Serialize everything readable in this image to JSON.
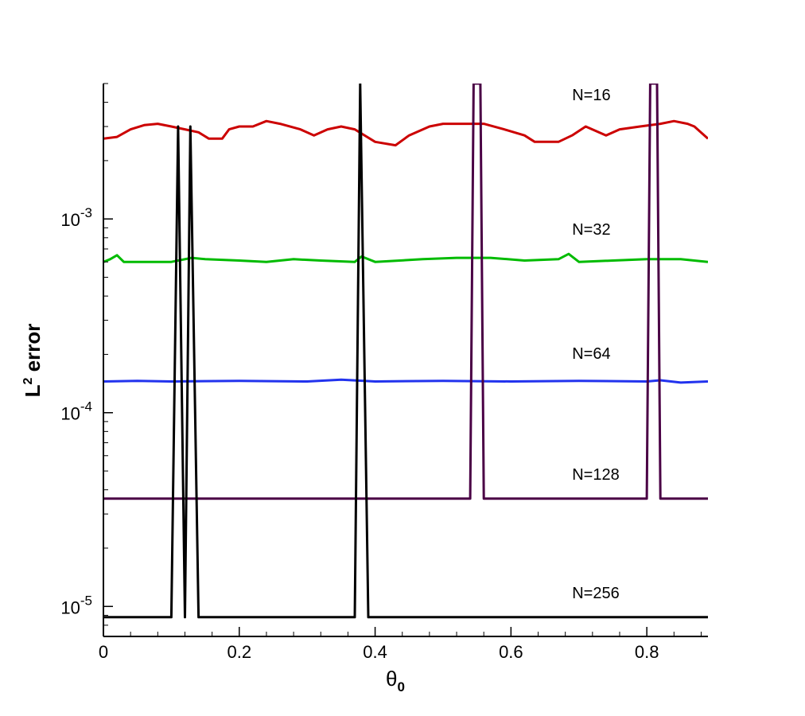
{
  "chart_data": {
    "type": "line",
    "xlabel": "θ",
    "xlabel_subscript": "0",
    "ylabel": "L",
    "ylabel_superscript": "2",
    "ylabel_suffix": " error",
    "xlim": [
      0,
      0.89
    ],
    "ylim": [
      7e-06,
      0.005
    ],
    "yscale": "log",
    "grid": false,
    "legend": "none",
    "x_ticks": [
      {
        "value": 0,
        "label": "0"
      },
      {
        "value": 0.2,
        "label": "0.2"
      },
      {
        "value": 0.4,
        "label": "0.4"
      },
      {
        "value": 0.6,
        "label": "0.6"
      },
      {
        "value": 0.8,
        "label": "0.8"
      }
    ],
    "y_ticks": [
      {
        "value": 1e-05,
        "base": "10",
        "exp": "-5"
      },
      {
        "value": 0.0001,
        "base": "10",
        "exp": "-4"
      },
      {
        "value": 0.001,
        "base": "10",
        "exp": "-3"
      }
    ],
    "series": [
      {
        "name": "N=16",
        "color": "#cc0000",
        "label_at": [
          0.69,
          0.0041
        ],
        "points": [
          [
            0,
            0.0026
          ],
          [
            0.02,
            0.00265
          ],
          [
            0.04,
            0.0029
          ],
          [
            0.06,
            0.00305
          ],
          [
            0.08,
            0.0031
          ],
          [
            0.1,
            0.003
          ],
          [
            0.12,
            0.0029
          ],
          [
            0.14,
            0.0028
          ],
          [
            0.155,
            0.0026
          ],
          [
            0.175,
            0.0026
          ],
          [
            0.185,
            0.0029
          ],
          [
            0.2,
            0.003
          ],
          [
            0.22,
            0.003
          ],
          [
            0.24,
            0.0032
          ],
          [
            0.26,
            0.0031
          ],
          [
            0.29,
            0.0029
          ],
          [
            0.31,
            0.0027
          ],
          [
            0.33,
            0.0029
          ],
          [
            0.35,
            0.003
          ],
          [
            0.37,
            0.0029
          ],
          [
            0.4,
            0.0025
          ],
          [
            0.43,
            0.0024
          ],
          [
            0.45,
            0.0027
          ],
          [
            0.48,
            0.003
          ],
          [
            0.5,
            0.0031
          ],
          [
            0.53,
            0.0031
          ],
          [
            0.56,
            0.0031
          ],
          [
            0.59,
            0.0029
          ],
          [
            0.62,
            0.0027
          ],
          [
            0.635,
            0.0025
          ],
          [
            0.67,
            0.0025
          ],
          [
            0.69,
            0.0027
          ],
          [
            0.71,
            0.003
          ],
          [
            0.74,
            0.0027
          ],
          [
            0.76,
            0.0029
          ],
          [
            0.79,
            0.003
          ],
          [
            0.82,
            0.0031
          ],
          [
            0.84,
            0.0032
          ],
          [
            0.86,
            0.0031
          ],
          [
            0.87,
            0.003
          ],
          [
            0.89,
            0.0026
          ]
        ]
      },
      {
        "name": "N=32",
        "color": "#00bb00",
        "label_at": [
          0.69,
          0.00083
        ],
        "points": [
          [
            0,
            0.0006
          ],
          [
            0.01,
            0.00062
          ],
          [
            0.02,
            0.00065
          ],
          [
            0.03,
            0.0006
          ],
          [
            0.1,
            0.0006
          ],
          [
            0.13,
            0.00063
          ],
          [
            0.15,
            0.00062
          ],
          [
            0.2,
            0.00061
          ],
          [
            0.24,
            0.0006
          ],
          [
            0.28,
            0.00062
          ],
          [
            0.32,
            0.00061
          ],
          [
            0.37,
            0.0006
          ],
          [
            0.38,
            0.00064
          ],
          [
            0.4,
            0.0006
          ],
          [
            0.47,
            0.00062
          ],
          [
            0.52,
            0.00063
          ],
          [
            0.57,
            0.00063
          ],
          [
            0.62,
            0.00061
          ],
          [
            0.67,
            0.00062
          ],
          [
            0.685,
            0.00066
          ],
          [
            0.7,
            0.0006
          ],
          [
            0.75,
            0.00061
          ],
          [
            0.8,
            0.00062
          ],
          [
            0.85,
            0.00062
          ],
          [
            0.89,
            0.0006
          ]
        ]
      },
      {
        "name": "N=64",
        "color": "#2233ee",
        "label_at": [
          0.69,
          0.00019
        ],
        "points": [
          [
            0,
            0.000145
          ],
          [
            0.05,
            0.000146
          ],
          [
            0.1,
            0.000145
          ],
          [
            0.2,
            0.000146
          ],
          [
            0.3,
            0.000145
          ],
          [
            0.35,
            0.000148
          ],
          [
            0.4,
            0.000145
          ],
          [
            0.5,
            0.000146
          ],
          [
            0.6,
            0.000145
          ],
          [
            0.7,
            0.000146
          ],
          [
            0.8,
            0.000145
          ],
          [
            0.82,
            0.000147
          ],
          [
            0.85,
            0.000143
          ],
          [
            0.89,
            0.000145
          ]
        ]
      },
      {
        "name": "N=128",
        "color": "#4a0045",
        "label_at": [
          0.69,
          4.5e-05
        ],
        "points": [
          [
            0,
            3.6e-05
          ],
          [
            0.54,
            3.6e-05
          ],
          [
            0.545,
            0.005
          ],
          [
            0.555,
            0.005
          ],
          [
            0.56,
            3.6e-05
          ],
          [
            0.8,
            3.6e-05
          ],
          [
            0.805,
            0.005
          ],
          [
            0.815,
            0.005
          ],
          [
            0.82,
            3.6e-05
          ],
          [
            0.89,
            3.6e-05
          ]
        ]
      },
      {
        "name": "N=256",
        "color": "#000000",
        "label_at": [
          0.69,
          1.1e-05
        ],
        "points": [
          [
            0,
            8.8e-06
          ],
          [
            0.1,
            8.8e-06
          ],
          [
            0.11,
            0.003
          ],
          [
            0.12,
            8.8e-06
          ],
          [
            0.128,
            0.003
          ],
          [
            0.14,
            8.8e-06
          ],
          [
            0.37,
            8.8e-06
          ],
          [
            0.378,
            0.005
          ],
          [
            0.39,
            8.8e-06
          ],
          [
            0.89,
            8.8e-06
          ]
        ]
      }
    ]
  }
}
